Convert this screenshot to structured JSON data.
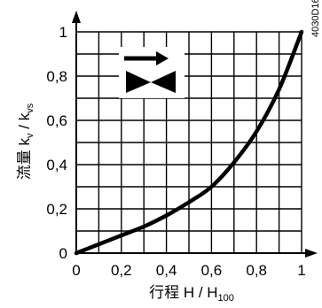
{
  "chart_data": {
    "type": "line",
    "title": "",
    "xlabel_main": "行程 H / H",
    "xlabel_sub": "100",
    "ylabel_main": "流量 k",
    "ylabel_sub1": "v",
    "ylabel_mid": " / k",
    "ylabel_sub2": "vs",
    "xlim": [
      0,
      1
    ],
    "ylim": [
      0,
      1
    ],
    "x_ticks": [
      "0",
      "0,2",
      "0,4",
      "0,6",
      "0,8",
      "1"
    ],
    "y_ticks": [
      "0",
      "0,2",
      "0,4",
      "0,6",
      "0,8",
      "1"
    ],
    "grid": true,
    "x": [
      0,
      0.1,
      0.2,
      0.3,
      0.4,
      0.5,
      0.6,
      0.7,
      0.8,
      0.9,
      1.0
    ],
    "series": [
      {
        "name": "",
        "values": [
          0,
          0.04,
          0.08,
          0.12,
          0.17,
          0.23,
          0.3,
          0.41,
          0.55,
          0.74,
          1.0
        ]
      }
    ],
    "figure_code": "4030D16",
    "icon": "valve-symbol-with-flow-arrow"
  }
}
